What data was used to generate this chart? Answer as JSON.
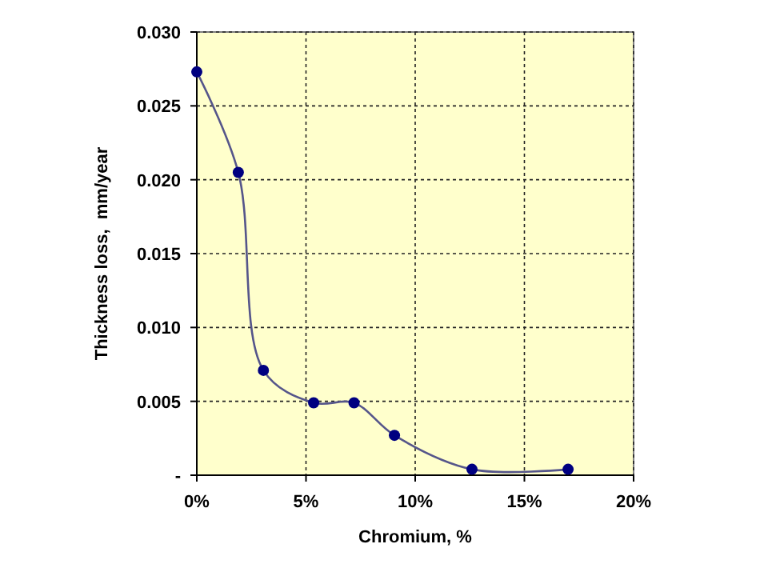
{
  "chart_data": {
    "type": "line",
    "xlabel": "Chromium, %",
    "ylabel": "Thickness loss,  mm/year",
    "x": [
      0,
      1.9,
      3.05,
      5.35,
      7.2,
      9.05,
      12.6,
      17.0
    ],
    "series": [
      {
        "color": "#000080",
        "values": [
          0.0273,
          0.0205,
          0.0071,
          0.0049,
          0.0049,
          0.0027,
          0.0004,
          0.0004
        ]
      }
    ],
    "xlim": [
      0,
      20
    ],
    "xticks": [
      {
        "value": 0,
        "label": "0%"
      },
      {
        "value": 5,
        "label": "5%"
      },
      {
        "value": 10,
        "label": "10%"
      },
      {
        "value": 15,
        "label": "15%"
      },
      {
        "value": 20,
        "label": "20%"
      }
    ],
    "ylim": [
      0,
      0.03
    ],
    "yticks": [
      {
        "value": 0,
        "label": "-"
      },
      {
        "value": 0.005,
        "label": "0.005"
      },
      {
        "value": 0.01,
        "label": "0.010"
      },
      {
        "value": 0.015,
        "label": "0.015"
      },
      {
        "value": 0.02,
        "label": "0.020"
      },
      {
        "value": 0.025,
        "label": "0.025"
      },
      {
        "value": 0.03,
        "label": "0.030"
      }
    ],
    "grid": true,
    "marker": "circle",
    "line_style": "solid"
  }
}
